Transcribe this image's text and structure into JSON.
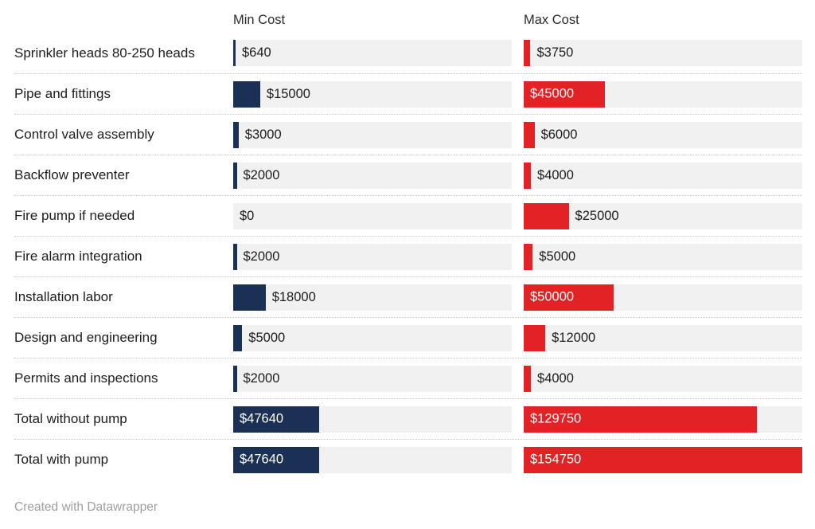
{
  "columns": {
    "min": "Min Cost",
    "max": "Max Cost"
  },
  "footer": "Created with Datawrapper",
  "colors": {
    "min_bar": "#1b3055",
    "max_bar": "#e32226",
    "track": "#f1f1f1",
    "text": "#1d1d1d",
    "inside_label": "#ffffff",
    "separator": "#c8c8c8",
    "footer_text": "#9e9e9e"
  },
  "chart_data": {
    "type": "bar",
    "title": "",
    "xlabel": "",
    "ylabel": "",
    "value_prefix": "$",
    "xlim": [
      0,
      154750
    ],
    "grid": false,
    "legend_position": "column-headers",
    "categories": [
      "Sprinkler heads 80-250 heads",
      "Pipe and fittings",
      "Control valve assembly",
      "Backflow preventer",
      "Fire pump if needed",
      "Fire alarm integration",
      "Installation labor",
      "Design and engineering",
      "Permits and inspections",
      "Total without pump",
      "Total with pump"
    ],
    "series": [
      {
        "name": "Min Cost",
        "color": "#1b3055",
        "values": [
          640,
          15000,
          3000,
          2000,
          0,
          2000,
          18000,
          5000,
          2000,
          47640,
          47640
        ]
      },
      {
        "name": "Max Cost",
        "color": "#e32226",
        "values": [
          3750,
          45000,
          6000,
          4000,
          25000,
          5000,
          50000,
          12000,
          4000,
          129750,
          154750
        ]
      }
    ]
  }
}
